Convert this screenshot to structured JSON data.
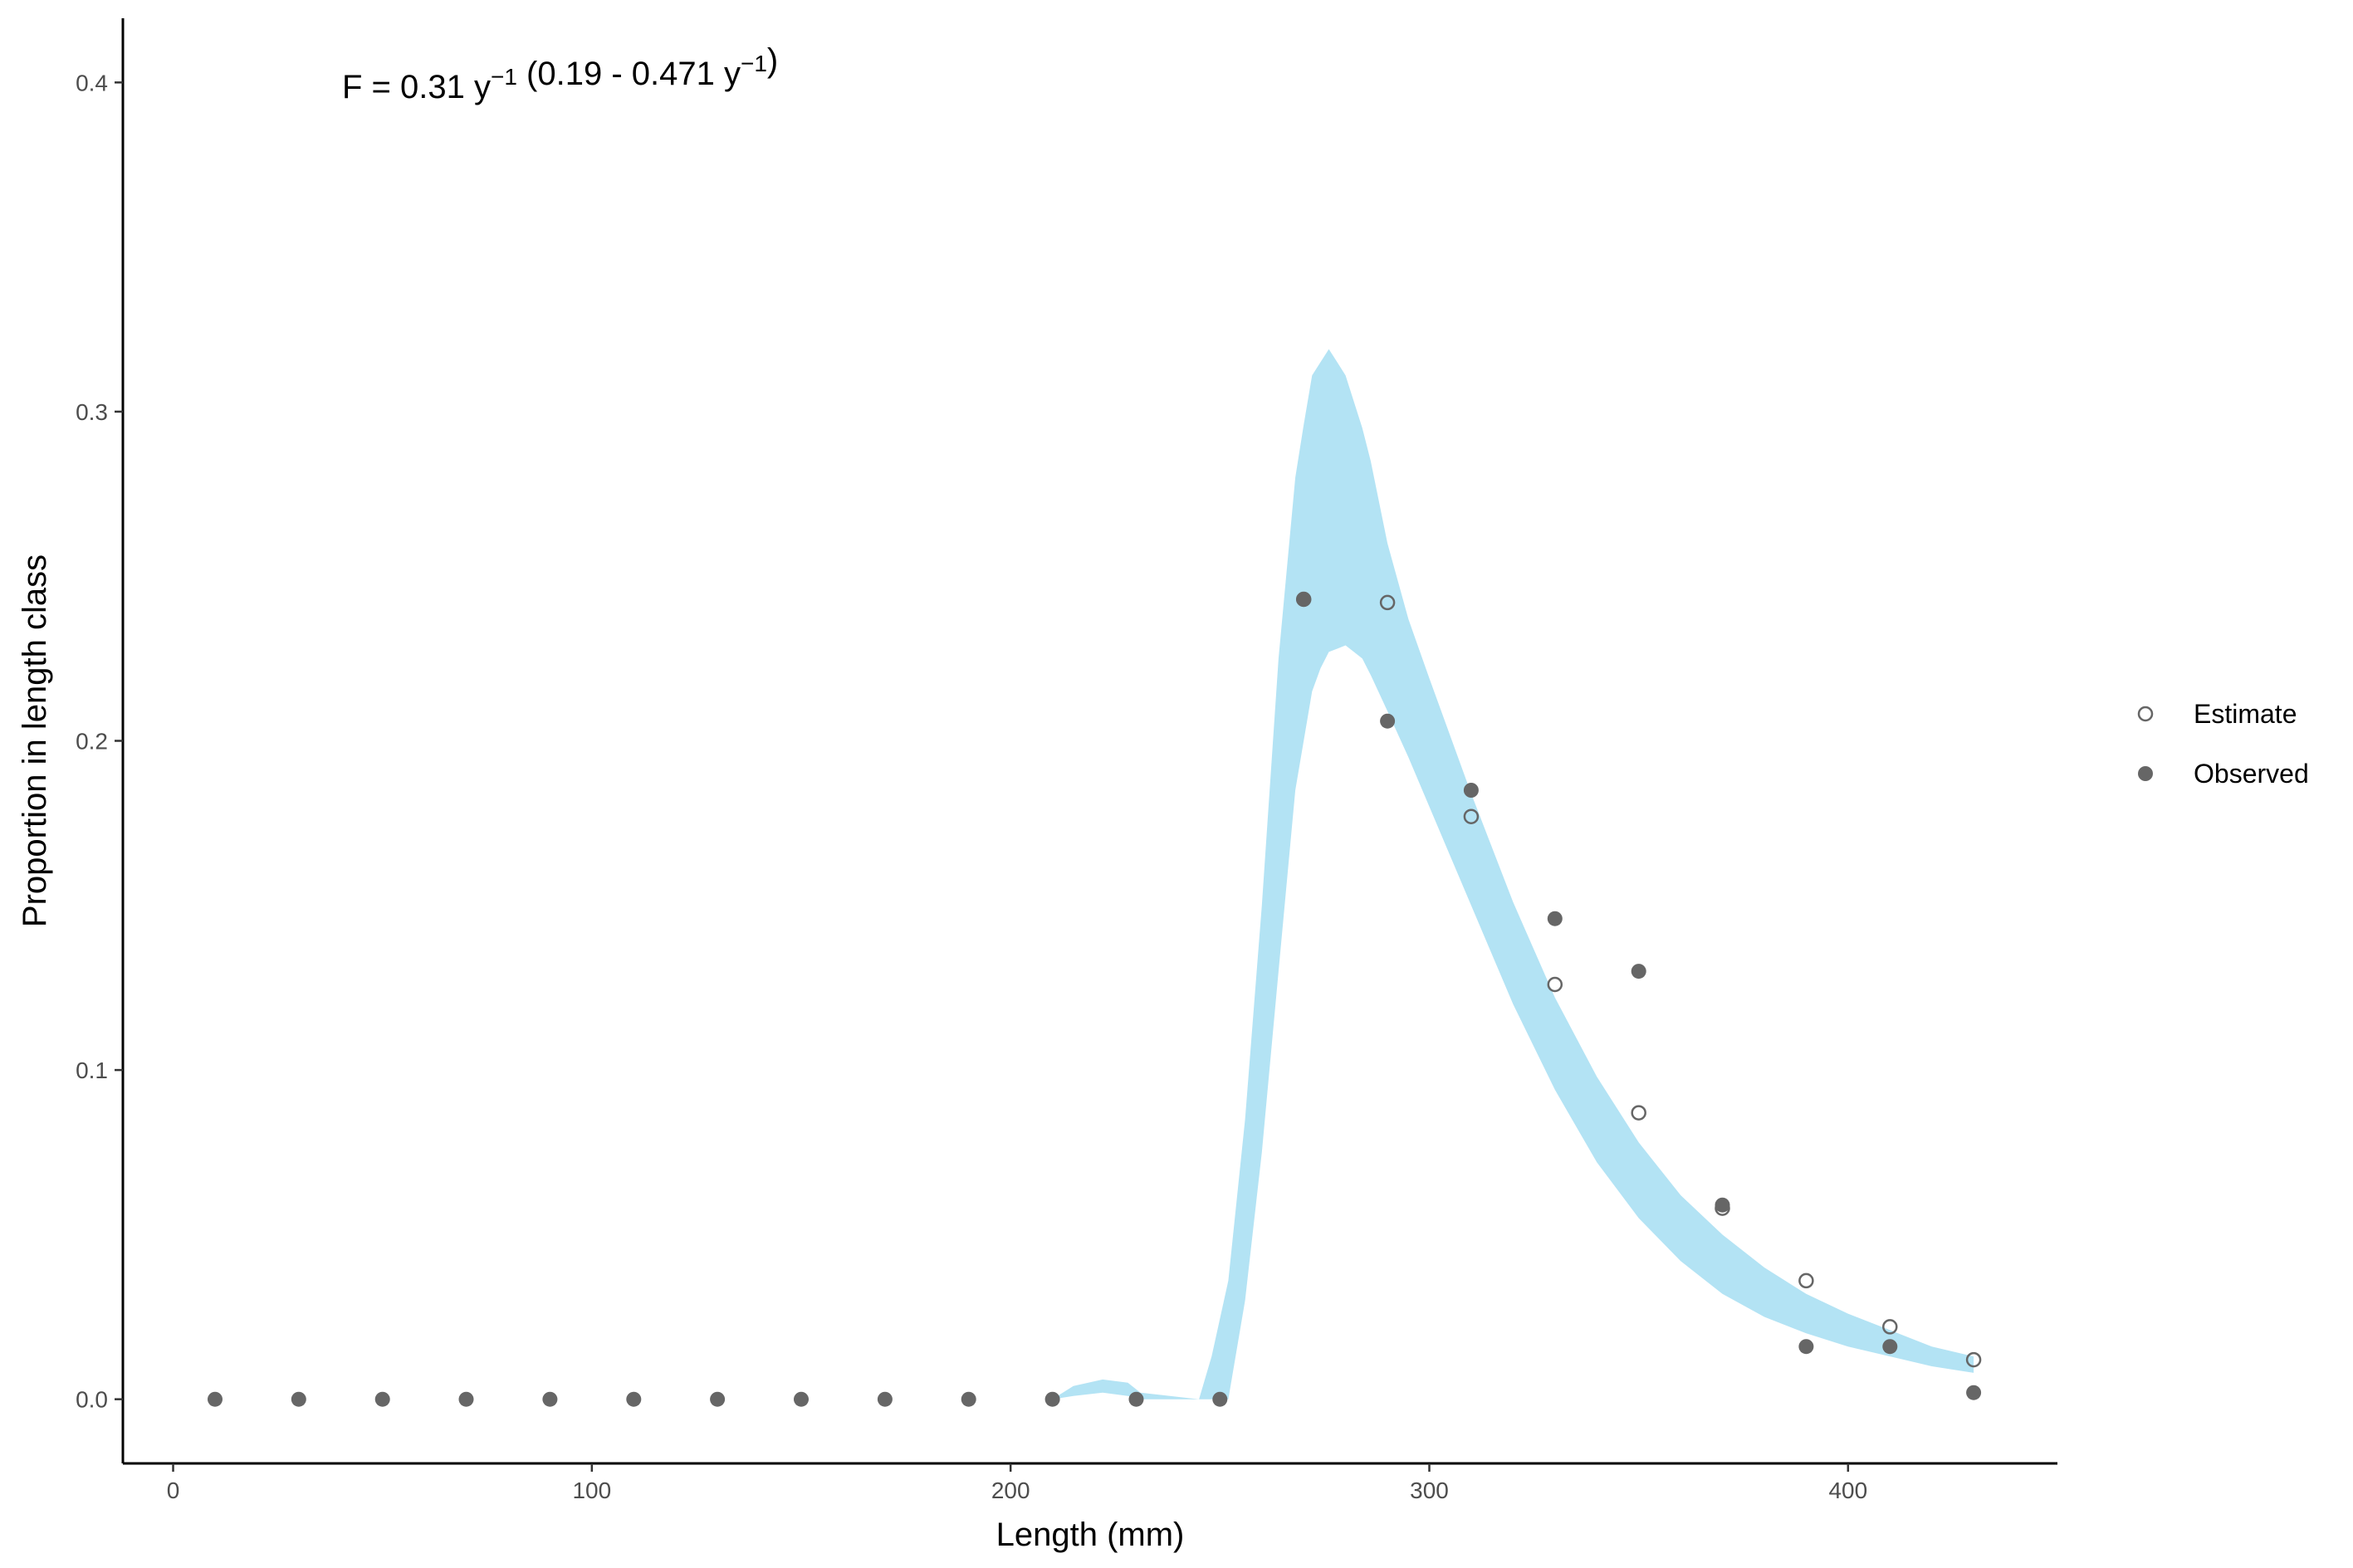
{
  "chart_data": {
    "type": "scatter",
    "xlabel": "Length (mm)",
    "ylabel": "Proportion in length class",
    "xlim": [
      -12,
      450
    ],
    "ylim": [
      -0.0195,
      0.4195
    ],
    "x_ticks": [
      0,
      100,
      200,
      300,
      400
    ],
    "y_ticks": [
      0.0,
      0.1,
      0.2,
      0.3,
      0.4
    ],
    "x_tick_labels": [
      "0",
      "100",
      "200",
      "300",
      "400"
    ],
    "y_tick_labels": [
      "0.0",
      "0.1",
      "0.2",
      "0.3",
      "0.4"
    ],
    "grid": false,
    "legend_position": "right",
    "annotation": {
      "parts": [
        {
          "text": "F = 0.31 y",
          "sup": false
        },
        {
          "text": "−1",
          "sup": true
        },
        {
          "text": " (0.19 - 0.471 y",
          "sup": false
        },
        {
          "text": "−1",
          "sup": true
        },
        {
          "text": ")",
          "sup": false
        }
      ]
    },
    "series": [
      {
        "name": "Estimate",
        "marker": "open-circle",
        "color": "#666666",
        "x": [
          270,
          290,
          310,
          330,
          350,
          370,
          390,
          410,
          430
        ],
        "y": [
          0.243,
          0.242,
          0.177,
          0.126,
          0.087,
          0.058,
          0.036,
          0.022,
          0.012
        ]
      },
      {
        "name": "Observed",
        "marker": "filled-circle",
        "color": "#666666",
        "x": [
          10,
          30,
          50,
          70,
          90,
          110,
          130,
          150,
          170,
          190,
          210,
          230,
          250,
          270,
          290,
          310,
          330,
          350,
          370,
          390,
          410,
          430
        ],
        "y": [
          0,
          0,
          0,
          0,
          0,
          0,
          0,
          0,
          0,
          0,
          0,
          0,
          0,
          0.243,
          0.206,
          0.185,
          0.146,
          0.13,
          0.059,
          0.016,
          0.016,
          0.002
        ]
      }
    ],
    "ribbon": {
      "color": "#b3e3f4",
      "x": [
        170,
        190,
        200,
        210,
        215,
        222,
        228,
        231,
        245,
        248,
        252,
        256,
        260,
        264,
        268,
        270,
        272,
        274,
        276,
        278,
        280,
        282,
        284,
        286,
        290,
        295,
        300,
        310,
        320,
        330,
        340,
        350,
        360,
        370,
        380,
        390,
        400,
        410,
        420,
        430
      ],
      "upper": [
        0,
        0,
        0,
        0,
        0.004,
        0.006,
        0.005,
        0.002,
        0,
        0.013,
        0.036,
        0.085,
        0.15,
        0.225,
        0.28,
        0.296,
        0.311,
        0.315,
        0.319,
        0.315,
        0.311,
        0.303,
        0.295,
        0.285,
        0.26,
        0.237,
        0.219,
        0.184,
        0.151,
        0.122,
        0.098,
        0.078,
        0.062,
        0.05,
        0.04,
        0.032,
        0.026,
        0.021,
        0.016,
        0.013
      ],
      "lower": [
        0,
        0,
        0,
        0,
        0.001,
        0.002,
        0.001,
        0,
        0,
        0,
        0,
        0.03,
        0.075,
        0.13,
        0.185,
        0.2,
        0.215,
        0.222,
        0.227,
        0.228,
        0.229,
        0.227,
        0.225,
        0.22,
        0.209,
        0.195,
        0.18,
        0.15,
        0.12,
        0.094,
        0.072,
        0.055,
        0.042,
        0.032,
        0.025,
        0.02,
        0.016,
        0.013,
        0.01,
        0.008
      ]
    }
  }
}
